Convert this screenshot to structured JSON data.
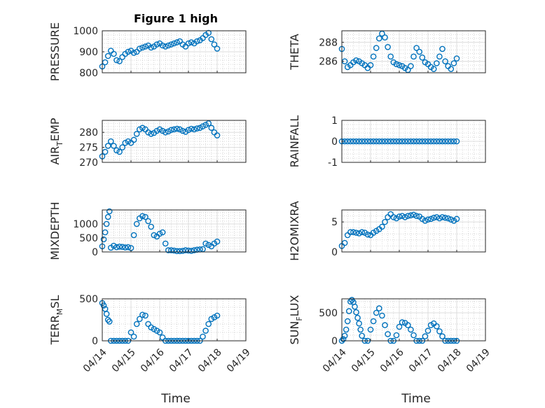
{
  "title": "Figure 1 high",
  "x_axis_label": "Time",
  "x_tick_labels": [
    "04/14",
    "04/15",
    "04/16",
    "04/17",
    "04/18",
    "04/19"
  ],
  "marker_color": "#0072BD",
  "chart_data": [
    {
      "type": "scatter",
      "ylabel": "PRESSURE",
      "title": "Figure 1 high",
      "xlim": [
        "04/14",
        "04/19"
      ],
      "ylim": [
        800,
        1000
      ],
      "yticks": [
        800,
        900,
        1000
      ],
      "grid": true,
      "x_days": [
        0.0,
        0.1,
        0.2,
        0.3,
        0.4,
        0.5,
        0.6,
        0.7,
        0.8,
        0.9,
        1.0,
        1.1,
        1.2,
        1.3,
        1.4,
        1.5,
        1.6,
        1.7,
        1.8,
        1.9,
        2.0,
        2.1,
        2.2,
        2.3,
        2.4,
        2.5,
        2.6,
        2.7,
        2.8,
        2.9,
        3.0,
        3.1,
        3.2,
        3.3,
        3.4,
        3.5,
        3.6,
        3.7,
        3.8,
        3.9,
        4.0
      ],
      "values": [
        830,
        850,
        880,
        905,
        890,
        860,
        855,
        875,
        890,
        900,
        905,
        895,
        900,
        915,
        920,
        925,
        930,
        920,
        925,
        935,
        940,
        930,
        925,
        930,
        935,
        940,
        945,
        950,
        935,
        925,
        940,
        945,
        940,
        950,
        955,
        965,
        980,
        990,
        960,
        935,
        915
      ]
    },
    {
      "type": "scatter",
      "ylabel": "THETA",
      "xlim": [
        "04/14",
        "04/19"
      ],
      "ylim": [
        284.8,
        289.2
      ],
      "yticks": [
        286,
        288
      ],
      "grid": true,
      "x_days": [
        0.0,
        0.1,
        0.2,
        0.3,
        0.4,
        0.5,
        0.6,
        0.7,
        0.8,
        0.9,
        1.0,
        1.1,
        1.2,
        1.3,
        1.4,
        1.5,
        1.6,
        1.7,
        1.8,
        1.9,
        2.0,
        2.1,
        2.2,
        2.3,
        2.4,
        2.5,
        2.6,
        2.7,
        2.8,
        2.9,
        3.0,
        3.1,
        3.2,
        3.3,
        3.4,
        3.5,
        3.6,
        3.7,
        3.8,
        3.9,
        4.0
      ],
      "values": [
        287.3,
        286.0,
        285.4,
        285.6,
        285.9,
        286.1,
        286.0,
        285.8,
        285.6,
        285.3,
        285.6,
        286.5,
        287.4,
        288.4,
        288.9,
        288.5,
        287.5,
        286.5,
        285.9,
        285.7,
        285.6,
        285.5,
        285.3,
        285.1,
        285.5,
        286.5,
        287.4,
        287.0,
        286.4,
        285.9,
        285.7,
        285.4,
        285.2,
        285.8,
        286.5,
        287.3,
        286.0,
        285.5,
        285.2,
        285.8,
        286.3
      ]
    },
    {
      "type": "scatter",
      "ylabel_base": "AIR",
      "ylabel_sub": "T",
      "ylabel_rest": "EMP",
      "xlim": [
        "04/14",
        "04/19"
      ],
      "ylim": [
        270,
        284
      ],
      "yticks": [
        270,
        275,
        280
      ],
      "grid": true,
      "x_days": [
        0.0,
        0.1,
        0.2,
        0.3,
        0.4,
        0.5,
        0.6,
        0.7,
        0.8,
        0.9,
        1.0,
        1.1,
        1.2,
        1.3,
        1.4,
        1.5,
        1.6,
        1.7,
        1.8,
        1.9,
        2.0,
        2.1,
        2.2,
        2.3,
        2.4,
        2.5,
        2.6,
        2.7,
        2.8,
        2.9,
        3.0,
        3.1,
        3.2,
        3.3,
        3.4,
        3.5,
        3.6,
        3.7,
        3.8,
        3.9,
        4.0
      ],
      "values": [
        272.0,
        273.5,
        275.5,
        277.0,
        275.5,
        274.0,
        273.5,
        275.0,
        276.5,
        277.0,
        276.5,
        277.5,
        279.5,
        281.0,
        281.5,
        281.0,
        280.0,
        279.5,
        279.8,
        280.5,
        281.0,
        280.5,
        280.0,
        280.3,
        280.8,
        281.0,
        281.2,
        281.0,
        280.5,
        280.2,
        280.8,
        281.2,
        281.0,
        281.3,
        281.5,
        282.0,
        282.5,
        283.0,
        281.5,
        280.0,
        279.0
      ]
    },
    {
      "type": "scatter",
      "ylabel": "RAINFALL",
      "xlim": [
        "04/14",
        "04/19"
      ],
      "ylim": [
        -1,
        1
      ],
      "yticks": [
        -1,
        0,
        1
      ],
      "grid": true,
      "x_days": [
        0.0,
        0.1,
        0.2,
        0.3,
        0.4,
        0.5,
        0.6,
        0.7,
        0.8,
        0.9,
        1.0,
        1.1,
        1.2,
        1.3,
        1.4,
        1.5,
        1.6,
        1.7,
        1.8,
        1.9,
        2.0,
        2.1,
        2.2,
        2.3,
        2.4,
        2.5,
        2.6,
        2.7,
        2.8,
        2.9,
        3.0,
        3.1,
        3.2,
        3.3,
        3.4,
        3.5,
        3.6,
        3.7,
        3.8,
        3.9,
        4.0
      ],
      "values": [
        0,
        0,
        0,
        0,
        0,
        0,
        0,
        0,
        0,
        0,
        0,
        0,
        0,
        0,
        0,
        0,
        0,
        0,
        0,
        0,
        0,
        0,
        0,
        0,
        0,
        0,
        0,
        0,
        0,
        0,
        0,
        0,
        0,
        0,
        0,
        0,
        0,
        0,
        0,
        0,
        0
      ]
    },
    {
      "type": "scatter",
      "ylabel": "MIXDEPTH",
      "xlim": [
        "04/14",
        "04/19"
      ],
      "ylim": [
        0,
        1500
      ],
      "yticks": [
        0,
        500,
        1000
      ],
      "grid": true,
      "x_days": [
        0.0,
        0.05,
        0.1,
        0.15,
        0.2,
        0.25,
        0.3,
        0.4,
        0.5,
        0.6,
        0.7,
        0.8,
        0.9,
        1.0,
        1.1,
        1.2,
        1.3,
        1.4,
        1.5,
        1.6,
        1.7,
        1.8,
        1.9,
        2.0,
        2.1,
        2.2,
        2.3,
        2.4,
        2.5,
        2.6,
        2.7,
        2.8,
        2.9,
        3.0,
        3.1,
        3.2,
        3.3,
        3.4,
        3.5,
        3.6,
        3.7,
        3.8,
        3.9,
        4.0
      ],
      "values": [
        200,
        450,
        700,
        1000,
        1250,
        1450,
        150,
        220,
        170,
        190,
        180,
        160,
        170,
        140,
        600,
        1000,
        1200,
        1280,
        1250,
        1100,
        900,
        600,
        550,
        650,
        700,
        300,
        60,
        60,
        50,
        30,
        30,
        40,
        60,
        50,
        40,
        60,
        80,
        90,
        100,
        300,
        250,
        200,
        300,
        370
      ]
    },
    {
      "type": "scatter",
      "ylabel": "H2OMIXRA",
      "xlim": [
        "04/14",
        "04/19"
      ],
      "ylim": [
        0,
        7
      ],
      "yticks": [
        0,
        5
      ],
      "grid": true,
      "x_days": [
        0.0,
        0.1,
        0.2,
        0.3,
        0.4,
        0.5,
        0.6,
        0.7,
        0.8,
        0.9,
        1.0,
        1.1,
        1.2,
        1.3,
        1.4,
        1.5,
        1.6,
        1.7,
        1.8,
        1.9,
        2.0,
        2.1,
        2.2,
        2.3,
        2.4,
        2.5,
        2.6,
        2.7,
        2.8,
        2.9,
        3.0,
        3.1,
        3.2,
        3.3,
        3.4,
        3.5,
        3.6,
        3.7,
        3.8,
        3.9,
        4.0
      ],
      "values": [
        1.0,
        1.5,
        2.8,
        3.3,
        3.3,
        3.2,
        3.1,
        3.3,
        3.2,
        2.9,
        2.8,
        3.2,
        3.5,
        3.8,
        4.2,
        5.0,
        5.8,
        6.3,
        5.8,
        5.6,
        5.9,
        6.0,
        5.8,
        6.0,
        6.1,
        6.2,
        6.0,
        5.9,
        5.5,
        5.2,
        5.4,
        5.5,
        5.7,
        5.8,
        5.6,
        5.8,
        5.7,
        5.6,
        5.4,
        5.2,
        5.5
      ]
    },
    {
      "type": "scatter",
      "ylabel_base": "TERR",
      "ylabel_sub": "M",
      "ylabel_rest": "SL",
      "xlim": [
        "04/14",
        "04/19"
      ],
      "ylim": [
        0,
        500
      ],
      "yticks": [
        0,
        500
      ],
      "grid": true,
      "x_days": [
        0.0,
        0.05,
        0.1,
        0.15,
        0.2,
        0.25,
        0.3,
        0.4,
        0.5,
        0.6,
        0.7,
        0.8,
        0.9,
        1.0,
        1.1,
        1.2,
        1.3,
        1.4,
        1.5,
        1.6,
        1.7,
        1.8,
        1.9,
        2.0,
        2.1,
        2.2,
        2.3,
        2.4,
        2.5,
        2.6,
        2.7,
        2.8,
        2.9,
        3.0,
        3.1,
        3.2,
        3.3,
        3.4,
        3.5,
        3.6,
        3.7,
        3.8,
        3.9,
        4.0
      ],
      "values": [
        450,
        420,
        380,
        320,
        250,
        230,
        0,
        0,
        0,
        0,
        0,
        0,
        0,
        100,
        50,
        200,
        260,
        310,
        300,
        200,
        160,
        140,
        120,
        100,
        40,
        0,
        0,
        0,
        0,
        0,
        0,
        0,
        0,
        0,
        0,
        0,
        0,
        0,
        50,
        120,
        200,
        260,
        280,
        300
      ]
    },
    {
      "type": "scatter",
      "ylabel_base": "SUN",
      "ylabel_sub": "F",
      "ylabel_rest": "LUX",
      "xlim": [
        "04/14",
        "04/19"
      ],
      "ylim": [
        0,
        750
      ],
      "yticks": [
        0,
        500
      ],
      "grid": true,
      "x_days": [
        0.0,
        0.05,
        0.1,
        0.15,
        0.2,
        0.25,
        0.3,
        0.35,
        0.4,
        0.45,
        0.5,
        0.55,
        0.6,
        0.65,
        0.7,
        0.8,
        0.9,
        1.0,
        1.1,
        1.2,
        1.3,
        1.4,
        1.5,
        1.6,
        1.7,
        1.8,
        1.9,
        2.0,
        2.1,
        2.2,
        2.3,
        2.4,
        2.5,
        2.6,
        2.7,
        2.8,
        2.9,
        3.0,
        3.1,
        3.2,
        3.3,
        3.4,
        3.5,
        3.6,
        3.7,
        3.8,
        3.9,
        4.0
      ],
      "values": [
        0,
        30,
        90,
        200,
        350,
        530,
        700,
        730,
        690,
        610,
        510,
        410,
        310,
        200,
        90,
        0,
        0,
        200,
        350,
        500,
        580,
        450,
        280,
        120,
        0,
        0,
        100,
        250,
        330,
        320,
        280,
        200,
        100,
        0,
        0,
        0,
        80,
        180,
        280,
        310,
        260,
        170,
        80,
        0,
        0,
        0,
        0,
        0
      ]
    }
  ]
}
